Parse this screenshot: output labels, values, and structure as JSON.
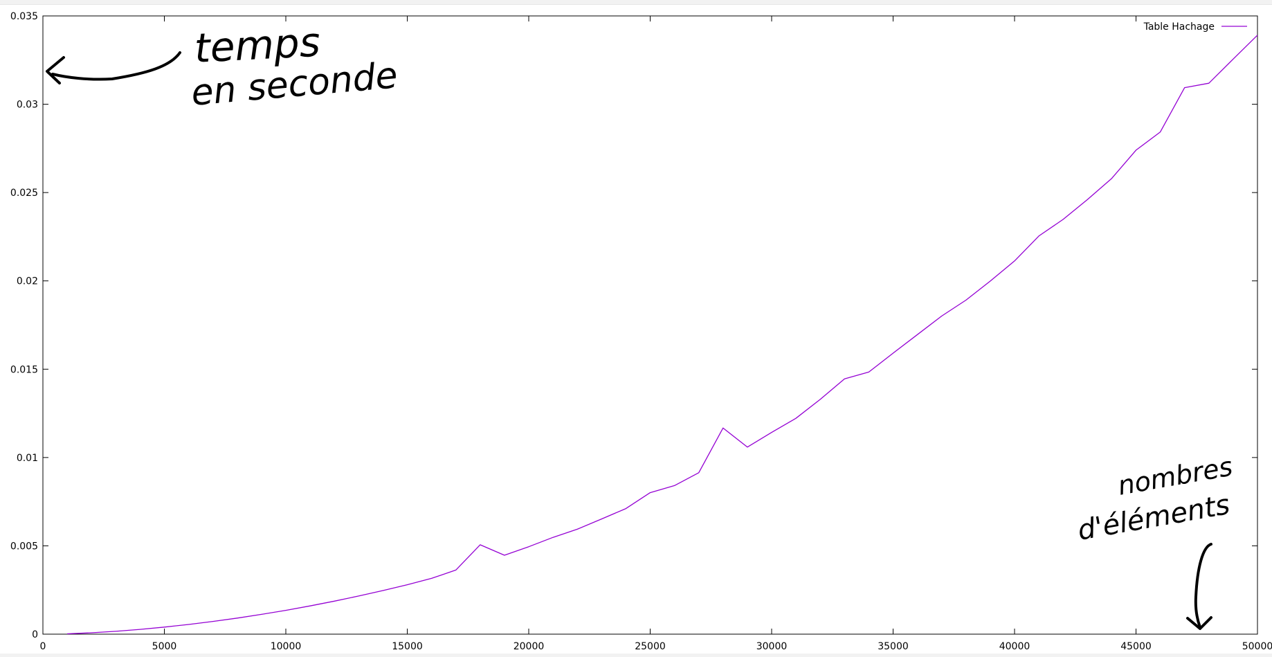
{
  "chart_data": {
    "type": "line",
    "title": "",
    "xlabel": "",
    "ylabel": "",
    "xlim": [
      0,
      50000
    ],
    "ylim": [
      0,
      0.035
    ],
    "x_ticks": [
      0,
      5000,
      10000,
      15000,
      20000,
      25000,
      30000,
      35000,
      40000,
      45000,
      50000
    ],
    "x_tick_labels": [
      "0",
      "5000",
      "10000",
      "15000",
      "20000",
      "25000",
      "30000",
      "35000",
      "40000",
      "45000",
      "50000"
    ],
    "y_ticks": [
      0,
      0.005,
      0.01,
      0.015,
      0.02,
      0.025,
      0.03,
      0.035
    ],
    "y_tick_labels": [
      "0",
      "0.005",
      "0.01",
      "0.015",
      "0.02",
      "0.025",
      "0.03",
      "0.035"
    ],
    "grid": false,
    "legend_position": "top-right",
    "series": [
      {
        "name": "Table Hachage",
        "color": "#9400d3",
        "x": [
          1000,
          2000,
          3000,
          4000,
          5000,
          6000,
          7000,
          8000,
          9000,
          10000,
          11000,
          12000,
          13000,
          14000,
          15000,
          16000,
          17000,
          18000,
          19000,
          20000,
          21000,
          22000,
          23000,
          24000,
          25000,
          26000,
          27000,
          28000,
          29000,
          30000,
          31000,
          32000,
          33000,
          34000,
          35000,
          36000,
          37000,
          38000,
          39000,
          40000,
          41000,
          42000,
          43000,
          44000,
          45000,
          46000,
          47000,
          48000,
          49000,
          50000
        ],
        "y": [
          2e-05,
          8e-05,
          0.00016,
          0.00027,
          0.0004,
          0.00055,
          0.00072,
          0.00091,
          0.00112,
          0.00135,
          0.0016,
          0.00187,
          0.00216,
          0.00247,
          0.0028,
          0.00316,
          0.00363,
          0.00506,
          0.00447,
          0.00495,
          0.00548,
          0.00594,
          0.00652,
          0.00711,
          0.00801,
          0.00841,
          0.00914,
          0.01167,
          0.01059,
          0.01142,
          0.01222,
          0.01329,
          0.01445,
          0.01484,
          0.01591,
          0.01696,
          0.01801,
          0.01891,
          0.01999,
          0.02113,
          0.02254,
          0.02348,
          0.0246,
          0.0258,
          0.0274,
          0.02843,
          0.03094,
          0.03119,
          0.03256,
          0.03391
        ]
      }
    ],
    "annotations": [
      {
        "kind": "handwriting",
        "lines": [
          "temps",
          "en seconde"
        ],
        "points_to": "y-axis"
      },
      {
        "kind": "handwriting",
        "lines": [
          "nombres",
          "d'éléments"
        ],
        "points_to": "x-axis"
      }
    ]
  }
}
